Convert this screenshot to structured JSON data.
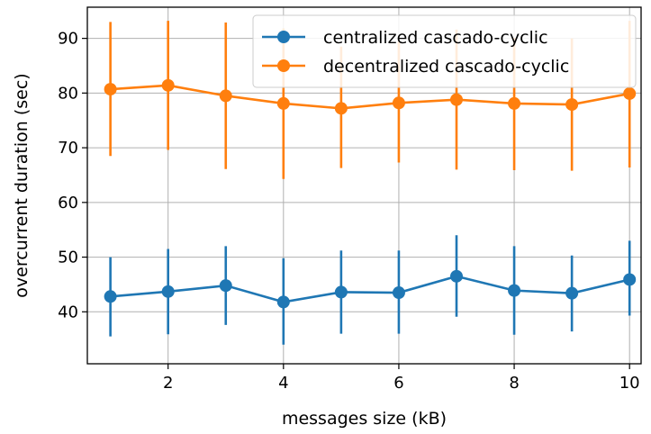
{
  "chart_data": {
    "type": "line",
    "title": "",
    "xlabel": "messages size (kB)",
    "ylabel": "overcurrent duration (sec)",
    "xlim": [
      0.6,
      10.2
    ],
    "ylim": [
      30.5,
      95.7
    ],
    "xticks": [
      2,
      4,
      6,
      8,
      10
    ],
    "yticks": [
      40,
      50,
      60,
      70,
      80,
      90
    ],
    "grid": true,
    "legend_position": "top-right",
    "series": [
      {
        "name": "centralized cascado-cyclic",
        "color": "#1f77b4",
        "x": [
          1,
          2,
          3,
          4,
          5,
          6,
          7,
          8,
          9,
          10
        ],
        "y": [
          42.8,
          43.7,
          44.8,
          41.8,
          43.6,
          43.5,
          46.5,
          43.9,
          43.4,
          45.9
        ],
        "err_low": [
          35.5,
          35.9,
          37.6,
          34.0,
          36.0,
          36.0,
          39.1,
          35.8,
          36.4,
          39.3
        ],
        "err_high": [
          50.0,
          51.5,
          52.0,
          49.8,
          51.2,
          51.2,
          54.0,
          52.0,
          50.3,
          53.0
        ]
      },
      {
        "name": "decentralized cascado-cyclic",
        "color": "#ff7f0e",
        "x": [
          1,
          2,
          3,
          4,
          5,
          6,
          7,
          8,
          9,
          10
        ],
        "y": [
          80.7,
          81.4,
          79.5,
          78.1,
          77.2,
          78.2,
          78.8,
          78.1,
          77.9,
          79.9
        ],
        "err_low": [
          68.5,
          69.6,
          66.1,
          64.3,
          66.3,
          67.3,
          66.0,
          65.9,
          65.8,
          66.4
        ],
        "err_high": [
          93.0,
          93.2,
          92.9,
          91.8,
          88.5,
          89.4,
          91.6,
          90.1,
          90.0,
          93.2
        ]
      }
    ]
  }
}
